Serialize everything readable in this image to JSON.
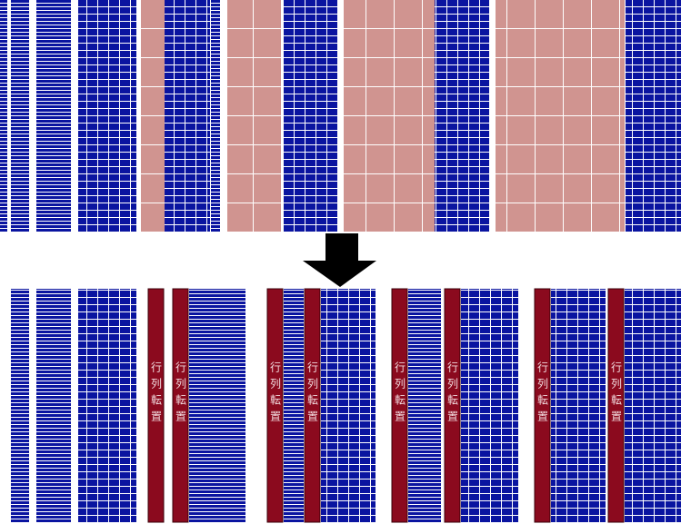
{
  "transpose_labels": [
    "行列転置",
    "行列転置",
    "行列転置",
    "行列転置",
    "行列転置",
    "行列転置",
    "行列転置",
    "行列転置"
  ]
}
